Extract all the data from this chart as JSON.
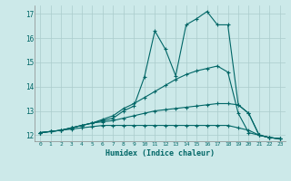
{
  "xlabel": "Humidex (Indice chaleur)",
  "xlim": [
    -0.5,
    23.5
  ],
  "ylim": [
    11.75,
    17.35
  ],
  "yticks": [
    12,
    13,
    14,
    15,
    16,
    17
  ],
  "xticks": [
    0,
    1,
    2,
    3,
    4,
    5,
    6,
    7,
    8,
    9,
    10,
    11,
    12,
    13,
    14,
    15,
    16,
    17,
    18,
    19,
    20,
    21,
    22,
    23
  ],
  "background_color": "#cce9e9",
  "grid_color": "#aacccc",
  "line_color": "#006666",
  "lines": [
    {
      "x": [
        0,
        1,
        2,
        3,
        4,
        5,
        6,
        7,
        8,
        9,
        10,
        11,
        12,
        13,
        14,
        15,
        16,
        17,
        18,
        19,
        20,
        21,
        22,
        23
      ],
      "y": [
        12.1,
        12.15,
        12.2,
        12.3,
        12.4,
        12.5,
        12.6,
        12.7,
        13.0,
        13.2,
        14.4,
        16.3,
        15.55,
        14.45,
        16.55,
        16.8,
        17.1,
        16.55,
        16.55,
        13.25,
        12.9,
        12.0,
        11.9,
        11.85
      ]
    },
    {
      "x": [
        0,
        1,
        2,
        3,
        4,
        5,
        6,
        7,
        8,
        9,
        10,
        11,
        12,
        13,
        14,
        15,
        16,
        17,
        18,
        19,
        20,
        21,
        22,
        23
      ],
      "y": [
        12.1,
        12.15,
        12.2,
        12.3,
        12.4,
        12.5,
        12.65,
        12.8,
        13.1,
        13.3,
        13.55,
        13.8,
        14.05,
        14.3,
        14.5,
        14.65,
        14.75,
        14.85,
        14.6,
        12.9,
        12.1,
        12.0,
        11.9,
        11.85
      ]
    },
    {
      "x": [
        0,
        1,
        2,
        3,
        4,
        5,
        6,
        7,
        8,
        9,
        10,
        11,
        12,
        13,
        14,
        15,
        16,
        17,
        18,
        19,
        20,
        21,
        22,
        23
      ],
      "y": [
        12.1,
        12.15,
        12.2,
        12.3,
        12.4,
        12.5,
        12.55,
        12.6,
        12.7,
        12.8,
        12.9,
        13.0,
        13.05,
        13.1,
        13.15,
        13.2,
        13.25,
        13.3,
        13.3,
        13.25,
        12.9,
        12.0,
        11.9,
        11.85
      ]
    },
    {
      "x": [
        0,
        1,
        2,
        3,
        4,
        5,
        6,
        7,
        8,
        9,
        10,
        11,
        12,
        13,
        14,
        15,
        16,
        17,
        18,
        19,
        20,
        21,
        22,
        23
      ],
      "y": [
        12.1,
        12.15,
        12.2,
        12.25,
        12.3,
        12.35,
        12.4,
        12.4,
        12.4,
        12.4,
        12.4,
        12.4,
        12.4,
        12.4,
        12.4,
        12.4,
        12.4,
        12.4,
        12.4,
        12.3,
        12.2,
        12.0,
        11.9,
        11.85
      ]
    }
  ]
}
